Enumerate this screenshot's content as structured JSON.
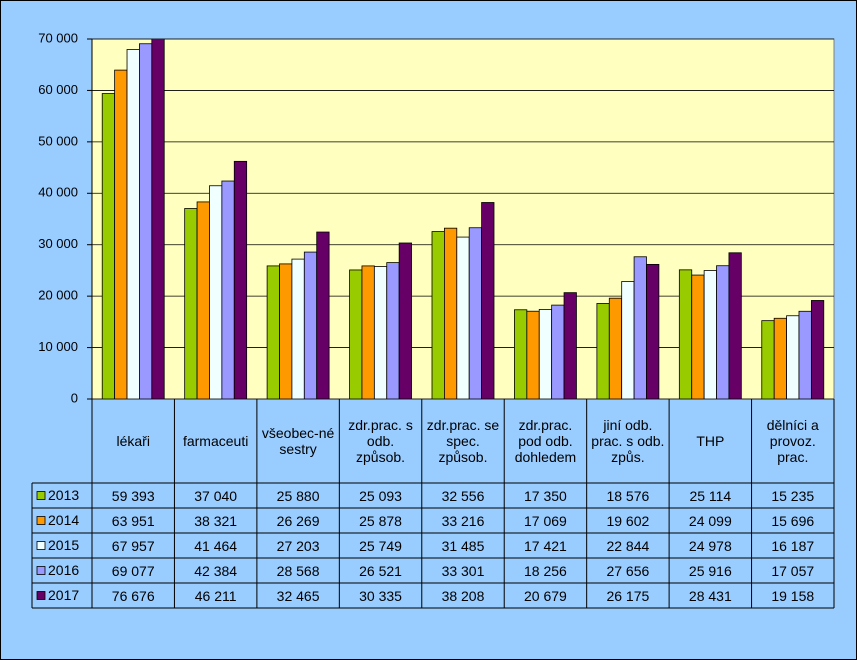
{
  "chart_data": {
    "type": "bar",
    "categories": [
      "lékaři",
      "farmaceuti",
      "všeobec-né sestry",
      "zdr.prac. s odb. způsob.",
      "zdr.prac. se spec. způsob.",
      "zdr.prac. pod odb. dohledem",
      "jiní odb. prac. s odb. způs.",
      "THP",
      "dělníci a provoz. prac."
    ],
    "series": [
      {
        "name": "2013",
        "color": "#99cc00",
        "values": [
          59393,
          37040,
          25880,
          25093,
          32556,
          17350,
          18576,
          25114,
          15235
        ],
        "value_labels": [
          "59 393",
          "37 040",
          "25 880",
          "25 093",
          "32 556",
          "17 350",
          "18 576",
          "25 114",
          "15 235"
        ]
      },
      {
        "name": "2014",
        "color": "#ff9900",
        "values": [
          63951,
          38321,
          26269,
          25878,
          33216,
          17069,
          19602,
          24099,
          15696
        ],
        "value_labels": [
          "63 951",
          "38 321",
          "26 269",
          "25 878",
          "33 216",
          "17 069",
          "19 602",
          "24 099",
          "15 696"
        ]
      },
      {
        "name": "2015",
        "color": "#f0ffff",
        "values": [
          67957,
          41464,
          27203,
          25749,
          31485,
          17421,
          22844,
          24978,
          16187
        ],
        "value_labels": [
          "67 957",
          "41 464",
          "27 203",
          "25 749",
          "31 485",
          "17 421",
          "22 844",
          "24 978",
          "16 187"
        ]
      },
      {
        "name": "2016",
        "color": "#9999ff",
        "values": [
          69077,
          42384,
          28568,
          26521,
          33301,
          18256,
          27656,
          25916,
          17057
        ],
        "value_labels": [
          "69 077",
          "42 384",
          "28 568",
          "26 521",
          "33 301",
          "18 256",
          "27 656",
          "25 916",
          "17 057"
        ]
      },
      {
        "name": "2017",
        "color": "#660066",
        "values": [
          76676,
          46211,
          32465,
          30335,
          38208,
          20679,
          26175,
          28431,
          19158
        ],
        "value_labels": [
          "76 676",
          "46 211",
          "32 465",
          "30 335",
          "38 208",
          "20 679",
          "26 175",
          "28 431",
          "19 158"
        ]
      }
    ],
    "ylim": [
      0,
      70000
    ],
    "yticks": [
      0,
      {
        "value": 10000,
        "label": "10 000"
      },
      {
        "value": 20000,
        "label": "20 000"
      },
      {
        "value": 30000,
        "label": "30 000"
      },
      {
        "value": 40000,
        "label": "40 000"
      },
      {
        "value": 50000,
        "label": "50 000"
      },
      {
        "value": 60000,
        "label": "60 000"
      },
      {
        "value": 70000,
        "label": "70 000"
      }
    ],
    "grid": true,
    "legend": "table"
  }
}
